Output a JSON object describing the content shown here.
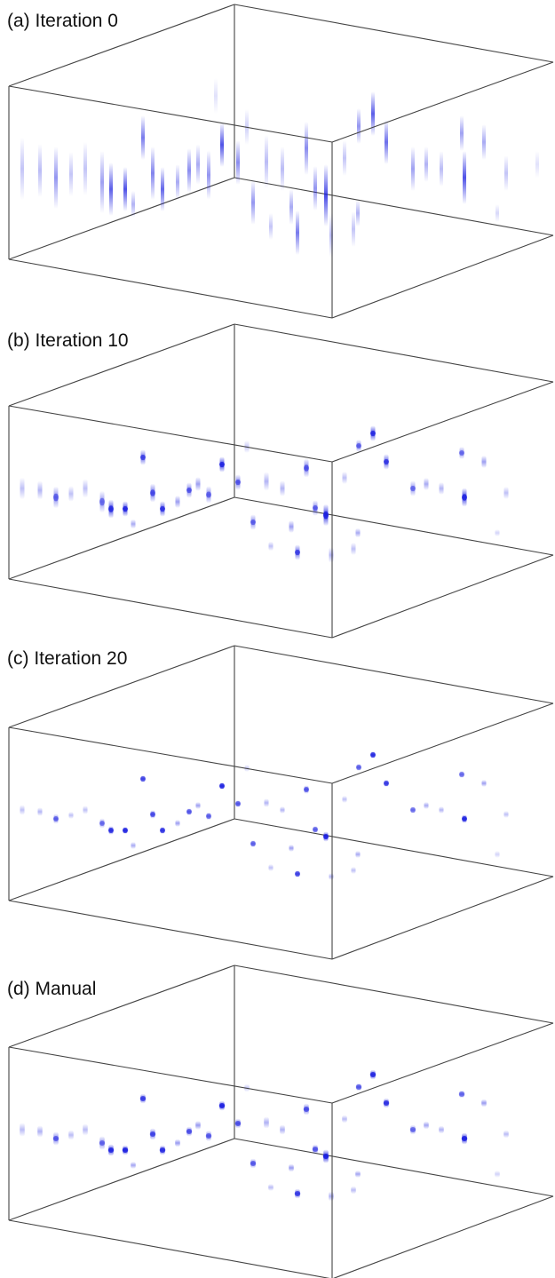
{
  "figure": {
    "panels": [
      {
        "id": "a",
        "label": "(a) Iteration 0",
        "stage": 0
      },
      {
        "id": "b",
        "label": "(b) Iteration 10",
        "stage": 1
      },
      {
        "id": "c",
        "label": "(c) Iteration 20",
        "stage": 2
      },
      {
        "id": "d",
        "label": "(d) Manual",
        "stage": 3
      }
    ]
  },
  "colors": {
    "spot": "#1a1ee0",
    "edge": "#444444",
    "background": "#ffffff"
  }
}
